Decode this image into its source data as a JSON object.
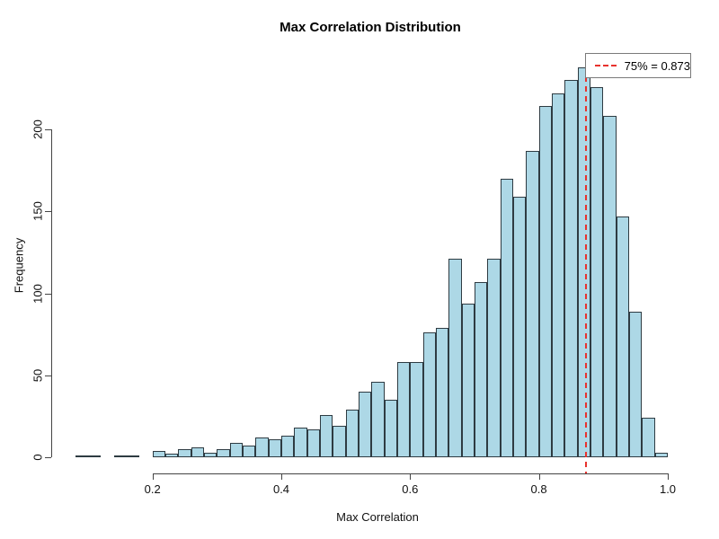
{
  "chart_data": {
    "type": "bar",
    "subtype": "histogram",
    "title": "Max Correlation Distribution",
    "xlabel": "Max Correlation",
    "ylabel": "Frequency",
    "bin_start": 0.08,
    "bin_width": 0.02,
    "counts": [
      1,
      1,
      0,
      1,
      1,
      0,
      4,
      2,
      5,
      6,
      3,
      5,
      9,
      7,
      12,
      11,
      13,
      18,
      17,
      26,
      19,
      29,
      40,
      46,
      35,
      58,
      58,
      76,
      79,
      121,
      94,
      107,
      121,
      170,
      159,
      187,
      214,
      222,
      230,
      238,
      226,
      208,
      147,
      89,
      24,
      3
    ],
    "x_ticks": [
      0.2,
      0.4,
      0.6,
      0.8,
      1.0
    ],
    "x_tick_labels": [
      "0.2",
      "0.4",
      "0.6",
      "0.8",
      "1.0"
    ],
    "y_ticks": [
      0,
      50,
      100,
      150,
      200
    ],
    "y_tick_labels": [
      "0",
      "50",
      "100",
      "150",
      "200"
    ],
    "xlim": [
      0.2,
      1.0
    ],
    "ylim": [
      0,
      200
    ],
    "grid": false,
    "bar_fill": "#ADD8E6",
    "bar_border": "#2e3b42",
    "vline": {
      "value": 0.873,
      "color": "#e8322d",
      "style": "dashed"
    },
    "legend": {
      "position": "topright",
      "label": "75% = 0.873",
      "swatch": "red-dashed-line"
    }
  }
}
